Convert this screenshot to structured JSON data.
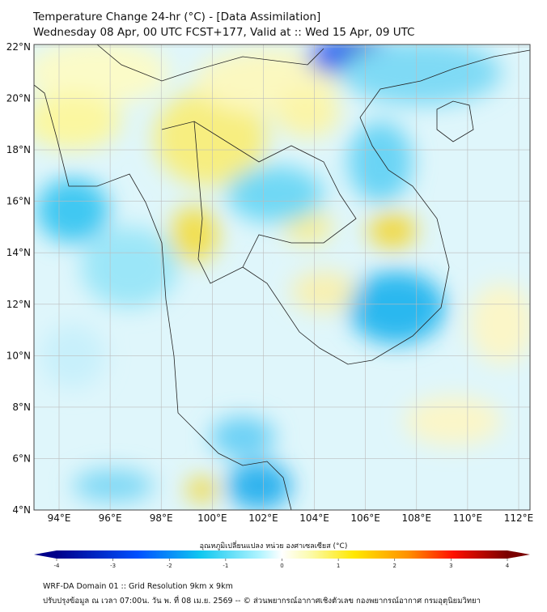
{
  "header": {
    "title": "Temperature Change 24-hr (°C) - [Data Assimilation]",
    "subtitle": "Wednesday 08 Apr, 00 UTC FCST+177, Valid at :: Wed 15 Apr, 09 UTC"
  },
  "map": {
    "lat_labels": [
      "22°N",
      "20°N",
      "18°N",
      "16°N",
      "14°N",
      "12°N",
      "10°N",
      "8°N",
      "6°N",
      "4°N"
    ],
    "lon_labels": [
      "94°E",
      "96°E",
      "98°E",
      "100°E",
      "102°E",
      "104°E",
      "106°E",
      "108°E",
      "110°E",
      "112°E"
    ]
  },
  "colorbar": {
    "title": "อุณหภูมิเปลี่ยนแปลง หน่วย องศาเซลเซียส (°C)",
    "ticks": [
      "-4",
      "-3",
      "-2",
      "-1",
      "0",
      "1",
      "2",
      "3",
      "4"
    ],
    "min_color": "#00007a",
    "zero_color": "#ffffff",
    "max_color": "#7a0000"
  },
  "footer": {
    "line1": "WRF-DA Domain 01 :: Grid Resolution 9km x 9km",
    "line2": "ปรับปรุงข้อมูล ณ เวลา 07:00น. วัน พ. ที่ 08 เม.ย. 2569 -- © ส่วนพยากรณ์อากาศเชิงตัวเลข กองพยากรณ์อากาศ กรมอุตุนิยมวิทยา"
  }
}
